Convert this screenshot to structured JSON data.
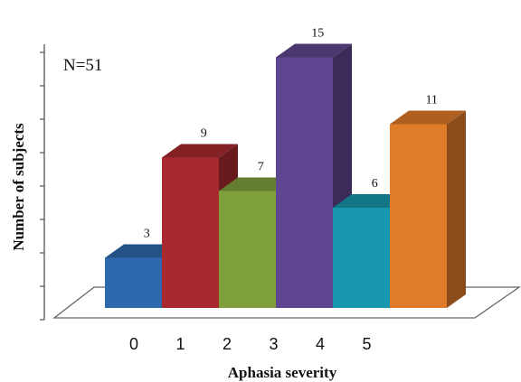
{
  "chart_data": {
    "type": "bar",
    "annotation": "N=51",
    "xlabel": "Aphasia severity",
    "ylabel": "Number of subjects",
    "categories": [
      "0",
      "1",
      "2",
      "3",
      "4",
      "5"
    ],
    "values": [
      3,
      9,
      7,
      15,
      6,
      11
    ],
    "ylim": [
      0,
      16
    ],
    "grid": false,
    "legend": "none",
    "style": "3d",
    "colors": [
      "#2e69ad",
      "#a82a2f",
      "#7f9f3c",
      "#5f4690",
      "#1797ad",
      "#e07b2a"
    ]
  }
}
